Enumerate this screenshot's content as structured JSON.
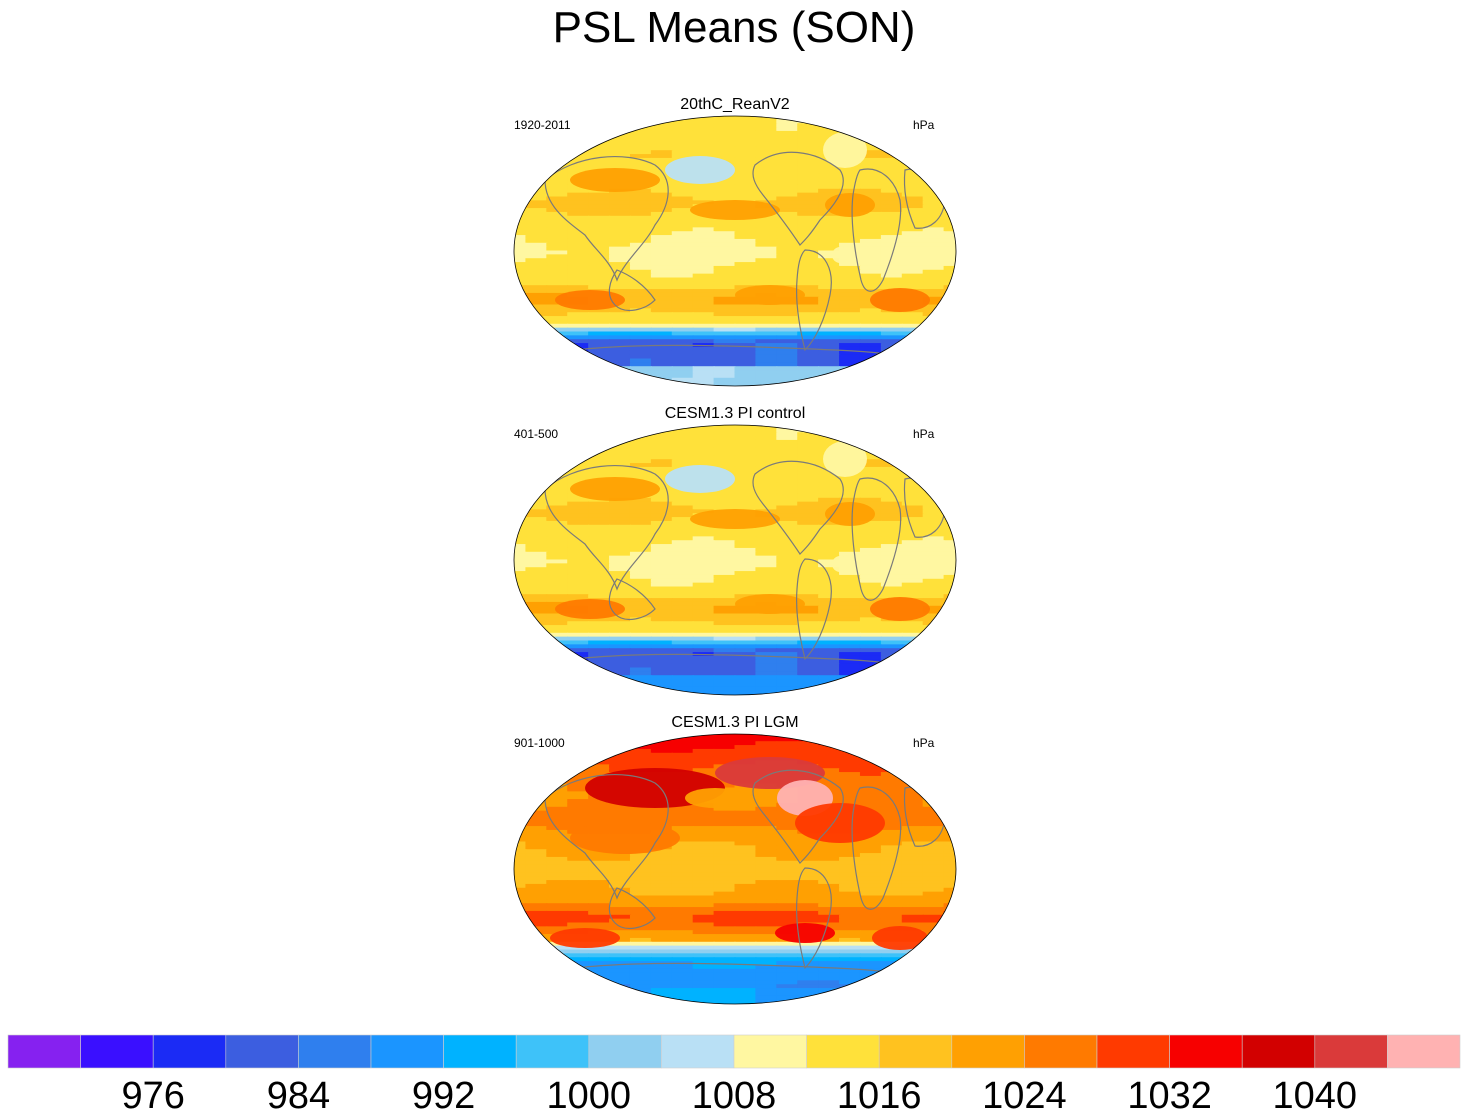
{
  "figure": {
    "title": "PSL Means (SON)"
  },
  "panels": [
    {
      "title": "20thC_ReanV2",
      "left_label": "1920-2011",
      "right_label": "hPa",
      "regime": "modern"
    },
    {
      "title": "CESM1.3 PI control",
      "left_label": "401-500",
      "right_label": "hPa",
      "regime": "control"
    },
    {
      "title": "CESM1.3 PI LGM",
      "left_label": "901-1000",
      "right_label": "hPa",
      "regime": "lgm"
    }
  ],
  "chart_data": {
    "type": "heatmap",
    "variable": "PSL",
    "units": "hPa",
    "title": "PSL Means (SON)",
    "projection": "Robinson-like global map",
    "colorbar": {
      "levels": [
        972,
        976,
        980,
        984,
        988,
        992,
        996,
        1000,
        1004,
        1008,
        1012,
        1016,
        1020,
        1024,
        1028,
        1032,
        1036,
        1040,
        1044
      ],
      "tick_labels": [
        "976",
        "984",
        "992",
        "1000",
        "1008",
        "1016",
        "1024",
        "1032",
        "1040"
      ],
      "colors": [
        "#8621f0",
        "#3a0fff",
        "#1b2bf5",
        "#3c5ee0",
        "#2f7fee",
        "#1b95ff",
        "#00b2ff",
        "#3ec2f9",
        "#90cff0",
        "#b9e0f5",
        "#fff7a1",
        "#ffe13a",
        "#ffc21f",
        "#ffa002",
        "#ff7a00",
        "#ff3a00",
        "#f70000",
        "#d20000",
        "#da3a3a",
        "#ffb2b2"
      ]
    },
    "series": [
      {
        "name": "20thC_ReanV2",
        "period": "1920-2011"
      },
      {
        "name": "CESM1.3 PI control",
        "period": "401-500"
      },
      {
        "name": "CESM1.3 PI LGM",
        "period": "901-1000"
      }
    ]
  }
}
